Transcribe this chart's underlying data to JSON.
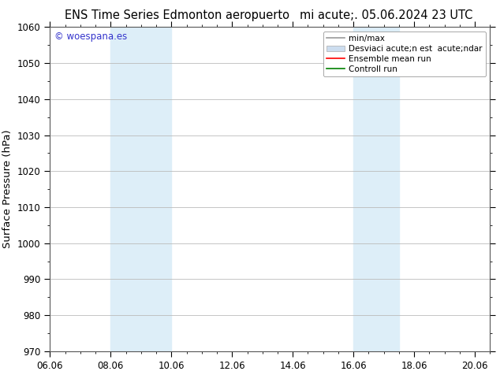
{
  "title_left": "ENS Time Series Edmonton aeropuerto",
  "title_right": "mi acute;. 05.06.2024 23 UTC",
  "ylabel": "Surface Pressure (hPa)",
  "ylim": [
    970,
    1060
  ],
  "yticks": [
    970,
    980,
    990,
    1000,
    1010,
    1020,
    1030,
    1040,
    1050,
    1060
  ],
  "xlim_start": 0.0,
  "xlim_end": 14.5,
  "xtick_labels": [
    "06.06",
    "08.06",
    "10.06",
    "12.06",
    "14.06",
    "16.06",
    "18.06",
    "20.06"
  ],
  "xtick_positions": [
    0,
    2,
    4,
    6,
    8,
    10,
    12,
    14
  ],
  "shaded_regions": [
    {
      "x_start": 2.0,
      "x_end": 4.0,
      "color": "#ddeef8"
    },
    {
      "x_start": 10.0,
      "x_end": 11.5,
      "color": "#ddeef8"
    }
  ],
  "watermark": "© woespana.es",
  "watermark_color": "#3333cc",
  "legend_entries": [
    {
      "label": "min/max",
      "color": "#999999",
      "lw": 1.2
    },
    {
      "label": "Desviaci acute;n est  acute;ndar",
      "color": "#ccddef",
      "patch": true
    },
    {
      "label": "Ensemble mean run",
      "color": "red",
      "lw": 1.2
    },
    {
      "label": "Controll run",
      "color": "green",
      "lw": 1.2
    }
  ],
  "bg_color": "#ffffff",
  "plot_bg_color": "#ffffff",
  "grid_color": "#bbbbbb",
  "title_fontsize": 10.5,
  "tick_fontsize": 8.5,
  "ylabel_fontsize": 9.5,
  "legend_fontsize": 7.5
}
